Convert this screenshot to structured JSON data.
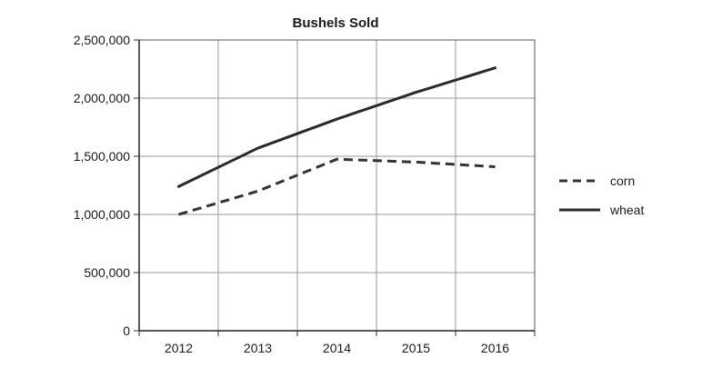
{
  "chart_data": {
    "type": "line",
    "title": "Bushels Sold",
    "xlabel": "",
    "ylabel": "",
    "categories": [
      "2012",
      "2013",
      "2014",
      "2015",
      "2016"
    ],
    "ylim": [
      0,
      2500000
    ],
    "yticks": [
      0,
      500000,
      1000000,
      1500000,
      2000000,
      2500000
    ],
    "ytick_labels": [
      "0",
      "500,000",
      "1,000,000",
      "1,500,000",
      "2,000,000",
      "2,500,000"
    ],
    "grid": true,
    "legend_position": "right",
    "series": [
      {
        "name": "corn",
        "style": "dashed",
        "color": "#333333",
        "values": [
          1000000,
          1200000,
          1475000,
          1450000,
          1410000
        ]
      },
      {
        "name": "wheat",
        "style": "solid",
        "color": "#2a2a2a",
        "values": [
          1240000,
          1570000,
          1820000,
          2050000,
          2260000
        ]
      }
    ]
  }
}
